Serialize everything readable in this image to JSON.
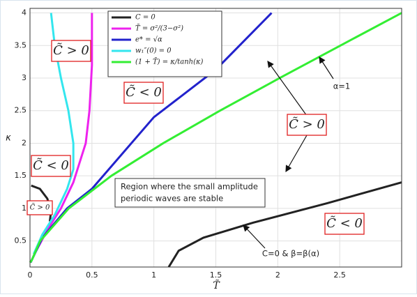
{
  "chart_data": {
    "type": "line",
    "xlabel": "T̃",
    "ylabel": "κ",
    "xlim": [
      0,
      3
    ],
    "ylim": [
      0.1,
      4.07
    ],
    "xticks": [
      0,
      0.5,
      1,
      1.5,
      2,
      2.5
    ],
    "yticks": [
      0.5,
      1,
      1.5,
      2,
      2.5,
      3,
      3.5,
      4
    ],
    "grid": true,
    "series": [
      {
        "name": "C = 0",
        "color": "#222222",
        "x": [
          0.01,
          0.08,
          0.14,
          0.17,
          0.16
        ],
        "values": [
          1.35,
          1.3,
          1.15,
          0.95,
          0.8
        ]
      },
      {
        "name": "T̃ = σ²/(3−σ²)",
        "color": "#ee22ee",
        "x": [
          0.05,
          0.15,
          0.25,
          0.35,
          0.45,
          0.48,
          0.5,
          0.5
        ],
        "values": [
          0.35,
          0.7,
          1.0,
          1.4,
          2.0,
          2.5,
          3.2,
          4.0
        ]
      },
      {
        "name": "e* = √α",
        "color": "#2222cc",
        "x": [
          0.005,
          0.1,
          0.3,
          0.5,
          1.0,
          1.5,
          1.95
        ],
        "values": [
          0.17,
          0.55,
          1.0,
          1.3,
          2.4,
          3.13,
          4.0
        ]
      },
      {
        "name": "w₁″(0) = 0",
        "color": "#33e6ee",
        "x": [
          0.17,
          0.2,
          0.25,
          0.31,
          0.35,
          0.35,
          0.3,
          0.2,
          0.1,
          0.03
        ],
        "values": [
          4.0,
          3.5,
          3.0,
          2.5,
          2.0,
          1.6,
          1.3,
          0.9,
          0.6,
          0.3
        ]
      },
      {
        "name": "(1 + T̃) = κ/tanh(κ)",
        "color": "#33ee33",
        "x": [
          0.0,
          0.0133,
          0.082,
          0.313,
          0.657,
          1.075,
          1.534,
          2.015,
          2.506,
          3.0
        ],
        "values": [
          0.17,
          0.2,
          0.5,
          1.0,
          1.5,
          2.0,
          2.5,
          3.0,
          3.5,
          4.0
        ]
      },
      {
        "name": "C = 0",
        "color": "#222222",
        "legend": false,
        "x": [
          1.12,
          1.2,
          1.4,
          1.8,
          2.4,
          3.0
        ],
        "values": [
          0.1,
          0.35,
          0.55,
          0.78,
          1.08,
          1.4
        ]
      }
    ],
    "annotations": [
      "C̃ > 0",
      "C̃ < 0",
      "C̃ < 0",
      "C̃ > 0",
      "C̃ > 0",
      "C̃ < 0",
      "α=1",
      "C=0 & β=β(α)",
      "Region where the small amplitude",
      "periodic  waves are stable"
    ]
  }
}
